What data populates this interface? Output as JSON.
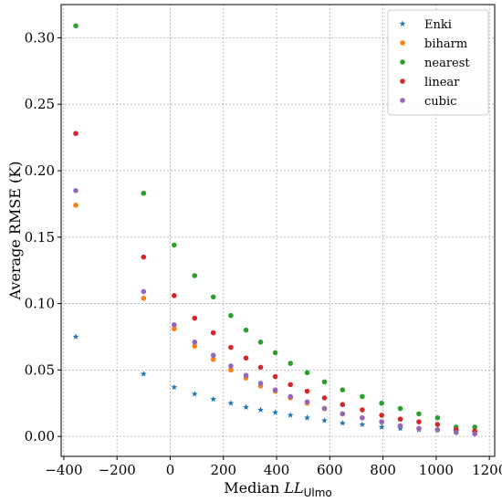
{
  "chart_data": {
    "type": "scatter",
    "title": "",
    "xlabel": {
      "prefix": "Median ",
      "italic": "LL",
      "sub": "Ulmo"
    },
    "ylabel": "Average RMSE (K)",
    "xlim": [
      -410,
      1220
    ],
    "ylim": [
      -0.015,
      0.325
    ],
    "xticks": [
      -400,
      -200,
      0,
      200,
      400,
      600,
      800,
      1000,
      1200
    ],
    "xtick_labels": [
      "−400",
      "−200",
      "0",
      "200",
      "400",
      "600",
      "800",
      "1000",
      "1200"
    ],
    "yticks": [
      0.0,
      0.05,
      0.1,
      0.15,
      0.2,
      0.25,
      0.3
    ],
    "ytick_labels": [
      "0.00",
      "0.05",
      "0.10",
      "0.15",
      "0.20",
      "0.25",
      "0.30"
    ],
    "grid": true,
    "legend_position": "top-right",
    "x": [
      -355,
      -100,
      15,
      92,
      162,
      228,
      285,
      340,
      395,
      452,
      515,
      580,
      648,
      722,
      795,
      865,
      935,
      1005,
      1075,
      1145
    ],
    "series": [
      {
        "name": "Enki",
        "marker": "star",
        "color": "#1f77b4",
        "values": [
          0.075,
          0.047,
          0.037,
          0.032,
          0.028,
          0.025,
          0.022,
          0.02,
          0.018,
          0.016,
          0.014,
          0.012,
          0.01,
          0.009,
          0.007,
          0.006,
          0.005,
          0.005,
          0.004,
          0.003
        ]
      },
      {
        "name": "biharm",
        "marker": "circle",
        "color": "#ff7f0e",
        "values": [
          0.174,
          0.104,
          0.081,
          0.068,
          0.058,
          0.05,
          0.044,
          0.038,
          0.034,
          0.029,
          0.025,
          0.021,
          0.017,
          0.014,
          0.011,
          0.008,
          0.006,
          0.005,
          0.003,
          0.002
        ]
      },
      {
        "name": "nearest",
        "marker": "circle",
        "color": "#2ca02c",
        "values": [
          0.309,
          0.183,
          0.144,
          0.121,
          0.105,
          0.091,
          0.08,
          0.071,
          0.063,
          0.055,
          0.048,
          0.041,
          0.035,
          0.03,
          0.025,
          0.021,
          0.017,
          0.014,
          0.007,
          0.007
        ]
      },
      {
        "name": "linear",
        "marker": "circle",
        "color": "#d62728",
        "values": [
          0.228,
          0.135,
          0.106,
          0.089,
          0.078,
          0.067,
          0.059,
          0.052,
          0.045,
          0.039,
          0.034,
          0.029,
          0.024,
          0.02,
          0.016,
          0.013,
          0.011,
          0.009,
          0.005,
          0.004
        ]
      },
      {
        "name": "cubic",
        "marker": "circle",
        "color": "#9467bd",
        "values": [
          0.185,
          0.109,
          0.084,
          0.071,
          0.061,
          0.053,
          0.046,
          0.04,
          0.035,
          0.03,
          0.026,
          0.021,
          0.017,
          0.014,
          0.011,
          0.008,
          0.006,
          0.005,
          0.003,
          0.002
        ]
      }
    ]
  }
}
